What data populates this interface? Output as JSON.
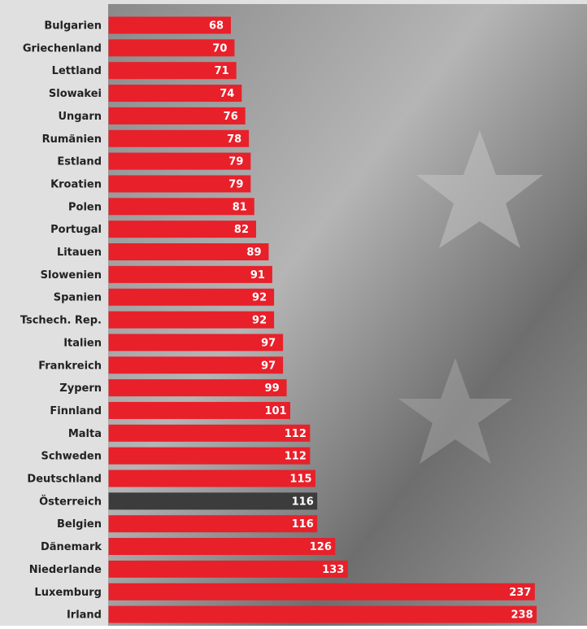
{
  "chart_data": {
    "type": "bar",
    "orientation": "horizontal",
    "categories": [
      "Bulgarien",
      "Griechenland",
      "Lettland",
      "Slowakei",
      "Ungarn",
      "Rumänien",
      "Estland",
      "Kroatien",
      "Polen",
      "Portugal",
      "Litauen",
      "Slowenien",
      "Spanien",
      "Tschech. Rep.",
      "Italien",
      "Frankreich",
      "Zypern",
      "Finnland",
      "Malta",
      "Schweden",
      "Deutschland",
      "Österreich",
      "Belgien",
      "Dänemark",
      "Niederlande",
      "Luxemburg",
      "Irland"
    ],
    "values": [
      68,
      70,
      71,
      74,
      76,
      78,
      79,
      79,
      81,
      82,
      89,
      91,
      92,
      92,
      97,
      97,
      99,
      101,
      112,
      112,
      115,
      116,
      116,
      126,
      133,
      237,
      238
    ],
    "colors": [
      "#e8202a",
      "#e8202a",
      "#e8202a",
      "#e8202a",
      "#e8202a",
      "#e8202a",
      "#e8202a",
      "#e8202a",
      "#e8202a",
      "#e8202a",
      "#e8202a",
      "#e8202a",
      "#e8202a",
      "#e8202a",
      "#e8202a",
      "#e8202a",
      "#e8202a",
      "#e8202a",
      "#e8202a",
      "#e8202a",
      "#e8202a",
      "#3c3c3c",
      "#e8202a",
      "#e8202a",
      "#e8202a",
      "#e8202a",
      "#e8202a"
    ]
  }
}
